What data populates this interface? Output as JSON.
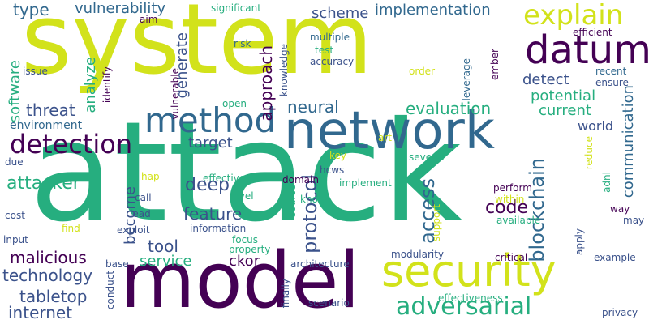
{
  "words": [
    {
      "text": "attack",
      "color": "#26ae7f"
    },
    {
      "text": "system",
      "color": "#d2e21b"
    },
    {
      "text": "model",
      "color": "#440154"
    },
    {
      "text": "network",
      "color": "#31688e"
    },
    {
      "text": "security",
      "color": "#d2e21b"
    },
    {
      "text": "datum",
      "color": "#440154"
    },
    {
      "text": "method",
      "color": "#31688e"
    },
    {
      "text": "detection",
      "color": "#440154"
    },
    {
      "text": "explain",
      "color": "#d2e21b"
    },
    {
      "text": "adversarial",
      "color": "#26ae7f"
    },
    {
      "text": "blockchain",
      "color": "#31688e"
    },
    {
      "text": "protocol",
      "color": "#3b528b"
    },
    {
      "text": "access",
      "color": "#31688e"
    },
    {
      "text": "deep",
      "color": "#3b528b"
    },
    {
      "text": "approach",
      "color": "#440154"
    },
    {
      "text": "code",
      "color": "#440154"
    },
    {
      "text": "attacker",
      "color": "#26ae7f"
    },
    {
      "text": "feature",
      "color": "#3b528b"
    },
    {
      "text": "tool",
      "color": "#3b528b"
    },
    {
      "text": "malicious",
      "color": "#440154"
    },
    {
      "text": "technology",
      "color": "#3b528b"
    },
    {
      "text": "tabletop",
      "color": "#3b528b"
    },
    {
      "text": "internet",
      "color": "#3b528b"
    },
    {
      "text": "service",
      "color": "#26ae7f"
    },
    {
      "text": "become",
      "color": "#3b528b"
    },
    {
      "text": "threat",
      "color": "#3b528b"
    },
    {
      "text": "evaluation",
      "color": "#26ae7f"
    },
    {
      "text": "neural",
      "color": "#31688e"
    },
    {
      "text": "implementation",
      "color": "#31688e"
    },
    {
      "text": "vulnerability",
      "color": "#31688e"
    },
    {
      "text": "type",
      "color": "#31688e"
    },
    {
      "text": "analyze",
      "color": "#26ae7f"
    },
    {
      "text": "software",
      "color": "#26ae7f"
    },
    {
      "text": "generate",
      "color": "#3b528b"
    },
    {
      "text": "scheme",
      "color": "#3b528b"
    },
    {
      "text": "potential",
      "color": "#26ae7f"
    },
    {
      "text": "current",
      "color": "#26ae7f"
    },
    {
      "text": "detect",
      "color": "#3b528b"
    },
    {
      "text": "world",
      "color": "#3b528b"
    },
    {
      "text": "communication",
      "color": "#31688e"
    },
    {
      "text": "environment",
      "color": "#31688e"
    },
    {
      "text": "target",
      "color": "#3b528b"
    },
    {
      "text": "ckor",
      "color": "#440154"
    },
    {
      "text": "significant",
      "color": "#26ae7f"
    },
    {
      "text": "aim",
      "color": "#440154"
    },
    {
      "text": "efficient",
      "color": "#440154"
    },
    {
      "text": "risk",
      "color": "#31688e"
    },
    {
      "text": "multiple",
      "color": "#31688e"
    },
    {
      "text": "test",
      "color": "#26ae7f"
    },
    {
      "text": "accuracy",
      "color": "#3b528b"
    },
    {
      "text": "order",
      "color": "#d2e21b"
    },
    {
      "text": "recent",
      "color": "#31688e"
    },
    {
      "text": "ensure",
      "color": "#3b528b"
    },
    {
      "text": "leverage",
      "color": "#31688e"
    },
    {
      "text": "ember",
      "color": "#440154"
    },
    {
      "text": "issue",
      "color": "#3b528b"
    },
    {
      "text": "identify",
      "color": "#440154"
    },
    {
      "text": "vulnerable",
      "color": "#440154"
    },
    {
      "text": "knowledge",
      "color": "#3b528b"
    },
    {
      "text": "open",
      "color": "#26ae7f"
    },
    {
      "text": "art",
      "color": "#d2e21b"
    },
    {
      "text": "key",
      "color": "#d2e21b"
    },
    {
      "text": "several",
      "color": "#26ae7f"
    },
    {
      "text": "reduce",
      "color": "#d2e21b"
    },
    {
      "text": "due",
      "color": "#3b528b"
    },
    {
      "text": "hap",
      "color": "#d2e21b"
    },
    {
      "text": "effective",
      "color": "#26ae7f"
    },
    {
      "text": "hcws",
      "color": "#3b528b"
    },
    {
      "text": "domain",
      "color": "#440154"
    },
    {
      "text": "implement",
      "color": "#26ae7f"
    },
    {
      "text": "perform",
      "color": "#440154"
    },
    {
      "text": "within",
      "color": "#d2e21b"
    },
    {
      "text": "call",
      "color": "#3b528b"
    },
    {
      "text": "level",
      "color": "#26ae7f"
    },
    {
      "text": "know",
      "color": "#26ae7f"
    },
    {
      "text": "source",
      "color": "#26ae7f"
    },
    {
      "text": "support",
      "color": "#d2e21b"
    },
    {
      "text": "available",
      "color": "#26ae7f"
    },
    {
      "text": "way",
      "color": "#440154"
    },
    {
      "text": "adni",
      "color": "#26ae7f"
    },
    {
      "text": "may",
      "color": "#3b528b"
    },
    {
      "text": "cost",
      "color": "#3b528b"
    },
    {
      "text": "lead",
      "color": "#3b528b"
    },
    {
      "text": "find",
      "color": "#d2e21b"
    },
    {
      "text": "information",
      "color": "#3b528b"
    },
    {
      "text": "exploit",
      "color": "#3b528b"
    },
    {
      "text": "focus",
      "color": "#26ae7f"
    },
    {
      "text": "property",
      "color": "#26ae7f"
    },
    {
      "text": "input",
      "color": "#3b528b"
    },
    {
      "text": "apply",
      "color": "#3b528b"
    },
    {
      "text": "example",
      "color": "#3b528b"
    },
    {
      "text": "modularity",
      "color": "#3b528b"
    },
    {
      "text": "critical",
      "color": "#440154"
    },
    {
      "text": "base",
      "color": "#3b528b"
    },
    {
      "text": "architecture",
      "color": "#3b528b"
    },
    {
      "text": "conduct",
      "color": "#3b528b"
    },
    {
      "text": "finally",
      "color": "#3b528b"
    },
    {
      "text": "scenario",
      "color": "#3b528b"
    },
    {
      "text": "effectiveness",
      "color": "#26ae7f"
    },
    {
      "text": "privacy",
      "color": "#3b528b"
    }
  ]
}
